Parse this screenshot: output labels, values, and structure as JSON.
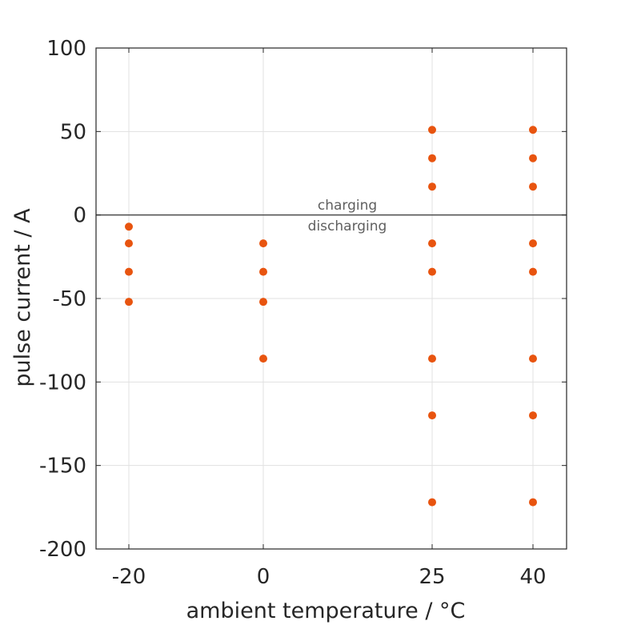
{
  "chart_data": {
    "type": "scatter",
    "title": "",
    "xlabel": "ambient temperature / °C",
    "ylabel": "pulse current / A",
    "xlim": [
      -20,
      40
    ],
    "ylim": [
      -200,
      100
    ],
    "xticks": [
      -20,
      0,
      25,
      40
    ],
    "yticks": [
      100,
      50,
      0,
      -50,
      -100,
      -150,
      -200
    ],
    "grid": true,
    "legend": "none",
    "marker_color": "#e8540f",
    "zero_line": true,
    "annotations": [
      "charging",
      "discharging"
    ],
    "points": [
      {
        "x": -20,
        "y": -7
      },
      {
        "x": -20,
        "y": -17
      },
      {
        "x": -20,
        "y": -34
      },
      {
        "x": -20,
        "y": -52
      },
      {
        "x": 0,
        "y": -17
      },
      {
        "x": 0,
        "y": -34
      },
      {
        "x": 0,
        "y": -52
      },
      {
        "x": 0,
        "y": -86
      },
      {
        "x": 25,
        "y": 51
      },
      {
        "x": 25,
        "y": 34
      },
      {
        "x": 25,
        "y": 17
      },
      {
        "x": 25,
        "y": -17
      },
      {
        "x": 25,
        "y": -34
      },
      {
        "x": 25,
        "y": -86
      },
      {
        "x": 25,
        "y": -120
      },
      {
        "x": 25,
        "y": -172
      },
      {
        "x": 40,
        "y": 51
      },
      {
        "x": 40,
        "y": 34
      },
      {
        "x": 40,
        "y": 17
      },
      {
        "x": 40,
        "y": -17
      },
      {
        "x": 40,
        "y": -34
      },
      {
        "x": 40,
        "y": -86
      },
      {
        "x": 40,
        "y": -120
      },
      {
        "x": 40,
        "y": -172
      }
    ]
  }
}
